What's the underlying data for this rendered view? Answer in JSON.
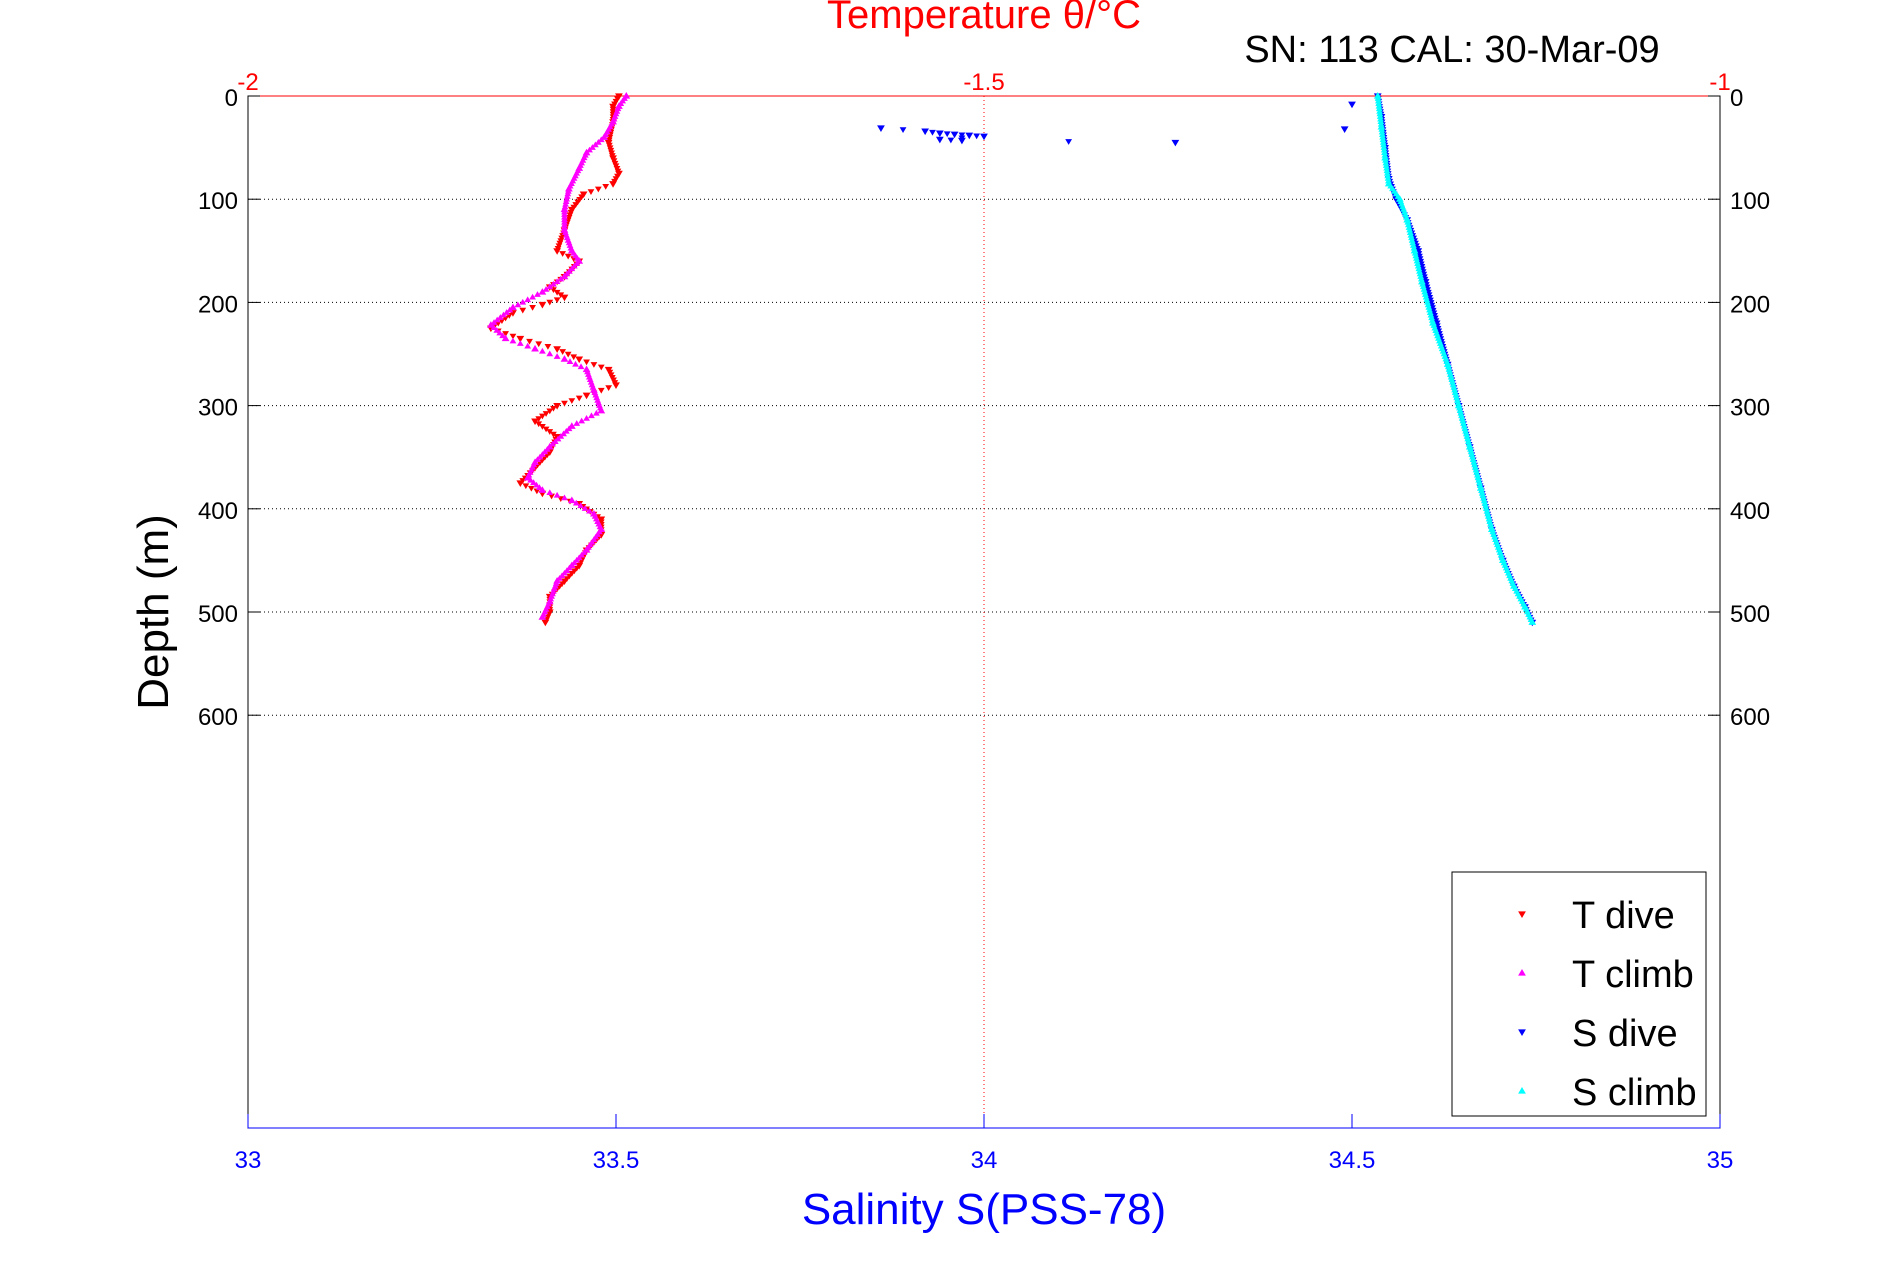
{
  "chart_data": {
    "type": "scatter",
    "title": "Temperature θ/°C",
    "subtitle": "SN: 113  CAL: 30-Mar-09",
    "ylabel": "Depth (m)",
    "xlabel": "Salinity S(PSS-78)",
    "grid": true,
    "legend_position": "bottom-right",
    "y_axis": {
      "label": "Depth (m)",
      "range": [
        0,
        1000
      ],
      "reversed": true,
      "ticks": [
        0,
        100,
        200,
        300,
        400,
        500,
        600
      ],
      "tick_labels": [
        "0",
        "100",
        "200",
        "300",
        "400",
        "500",
        "600"
      ]
    },
    "x_axis_bottom": {
      "label": "Salinity S(PSS-78)",
      "range": [
        33,
        35
      ],
      "ticks": [
        33,
        33.5,
        34,
        34.5,
        35
      ],
      "tick_labels": [
        "33",
        "33.5",
        "34",
        "34.5",
        "35"
      ],
      "color": "#0000ff"
    },
    "x_axis_top": {
      "label": "Temperature θ/°C",
      "range": [
        -2,
        -1
      ],
      "ticks": [
        -2,
        -1.5,
        -1
      ],
      "tick_labels": [
        "-2",
        "-1.5",
        "-1"
      ],
      "color": "#ff0000"
    },
    "series": [
      {
        "name": "T dive",
        "axis": "temperature",
        "color": "#ff0000",
        "marker": "triangle-down",
        "points": [
          [
            -1.748,
            0
          ],
          [
            -1.752,
            10
          ],
          [
            -1.752,
            25
          ],
          [
            -1.755,
            45
          ],
          [
            -1.752,
            60
          ],
          [
            -1.748,
            75
          ],
          [
            -1.752,
            85
          ],
          [
            -1.772,
            95
          ],
          [
            -1.78,
            110
          ],
          [
            -1.785,
            130
          ],
          [
            -1.79,
            150
          ],
          [
            -1.775,
            160
          ],
          [
            -1.785,
            175
          ],
          [
            -1.795,
            185
          ],
          [
            -1.785,
            195
          ],
          [
            -1.8,
            202
          ],
          [
            -1.82,
            210
          ],
          [
            -1.835,
            225
          ],
          [
            -1.815,
            235
          ],
          [
            -1.79,
            245
          ],
          [
            -1.775,
            255
          ],
          [
            -1.755,
            265
          ],
          [
            -1.75,
            280
          ],
          [
            -1.77,
            290
          ],
          [
            -1.79,
            300
          ],
          [
            -1.805,
            315
          ],
          [
            -1.79,
            330
          ],
          [
            -1.795,
            345
          ],
          [
            -1.805,
            360
          ],
          [
            -1.815,
            375
          ],
          [
            -1.8,
            385
          ],
          [
            -1.775,
            395
          ],
          [
            -1.76,
            410
          ],
          [
            -1.76,
            425
          ],
          [
            -1.77,
            440
          ],
          [
            -1.775,
            455
          ],
          [
            -1.785,
            470
          ],
          [
            -1.795,
            485
          ],
          [
            -1.795,
            500
          ],
          [
            -1.798,
            510
          ]
        ]
      },
      {
        "name": "T climb",
        "axis": "temperature",
        "color": "#ff00ff",
        "marker": "triangle-up",
        "points": [
          [
            -1.743,
            0
          ],
          [
            -1.748,
            10
          ],
          [
            -1.752,
            25
          ],
          [
            -1.758,
            40
          ],
          [
            -1.77,
            55
          ],
          [
            -1.775,
            70
          ],
          [
            -1.782,
            90
          ],
          [
            -1.785,
            110
          ],
          [
            -1.785,
            130
          ],
          [
            -1.78,
            150
          ],
          [
            -1.775,
            160
          ],
          [
            -1.785,
            175
          ],
          [
            -1.8,
            190
          ],
          [
            -1.82,
            205
          ],
          [
            -1.835,
            222
          ],
          [
            -1.825,
            235
          ],
          [
            -1.805,
            245
          ],
          [
            -1.785,
            255
          ],
          [
            -1.77,
            265
          ],
          [
            -1.765,
            285
          ],
          [
            -1.76,
            305
          ],
          [
            -1.78,
            320
          ],
          [
            -1.795,
            340
          ],
          [
            -1.805,
            355
          ],
          [
            -1.81,
            370
          ],
          [
            -1.8,
            382
          ],
          [
            -1.78,
            392
          ],
          [
            -1.765,
            405
          ],
          [
            -1.76,
            420
          ],
          [
            -1.77,
            440
          ],
          [
            -1.78,
            455
          ],
          [
            -1.79,
            470
          ],
          [
            -1.795,
            490
          ],
          [
            -1.8,
            505
          ]
        ]
      },
      {
        "name": "S dive",
        "axis": "salinity",
        "color": "#0000ff",
        "marker": "triangle-down",
        "points": [
          [
            33.86,
            31
          ],
          [
            33.92,
            34
          ],
          [
            33.94,
            36
          ],
          [
            33.96,
            37
          ],
          [
            33.98,
            38
          ],
          [
            34.0,
            39
          ],
          [
            33.94,
            42
          ],
          [
            33.97,
            43
          ],
          [
            34.26,
            45
          ],
          [
            34.49,
            32
          ],
          [
            34.5,
            8
          ],
          [
            34.535,
            0
          ],
          [
            34.54,
            20
          ],
          [
            34.545,
            50
          ],
          [
            34.55,
            80
          ],
          [
            34.56,
            100
          ],
          [
            34.575,
            120
          ],
          [
            34.59,
            150
          ],
          [
            34.6,
            180
          ],
          [
            34.615,
            220
          ],
          [
            34.63,
            260
          ],
          [
            34.645,
            300
          ],
          [
            34.66,
            340
          ],
          [
            34.675,
            380
          ],
          [
            34.69,
            420
          ],
          [
            34.705,
            450
          ],
          [
            34.72,
            475
          ],
          [
            34.735,
            495
          ],
          [
            34.745,
            510
          ]
        ]
      },
      {
        "name": "S climb",
        "axis": "salinity",
        "color": "#00ffff",
        "marker": "triangle-up",
        "points": [
          [
            34.535,
            0
          ],
          [
            34.54,
            30
          ],
          [
            34.545,
            60
          ],
          [
            34.55,
            85
          ],
          [
            34.565,
            100
          ],
          [
            34.575,
            120
          ],
          [
            34.585,
            150
          ],
          [
            34.595,
            180
          ],
          [
            34.61,
            220
          ],
          [
            34.63,
            260
          ],
          [
            34.645,
            300
          ],
          [
            34.66,
            340
          ],
          [
            34.675,
            380
          ],
          [
            34.69,
            420
          ],
          [
            34.705,
            450
          ],
          [
            34.72,
            475
          ],
          [
            34.735,
            495
          ],
          [
            34.745,
            510
          ]
        ]
      }
    ]
  },
  "legend": {
    "entries": [
      {
        "label": "T dive",
        "color": "#ff0000"
      },
      {
        "label": "T climb",
        "color": "#ff00ff"
      },
      {
        "label": "S dive",
        "color": "#0000ff"
      },
      {
        "label": "S climb",
        "color": "#00ffff"
      }
    ]
  }
}
